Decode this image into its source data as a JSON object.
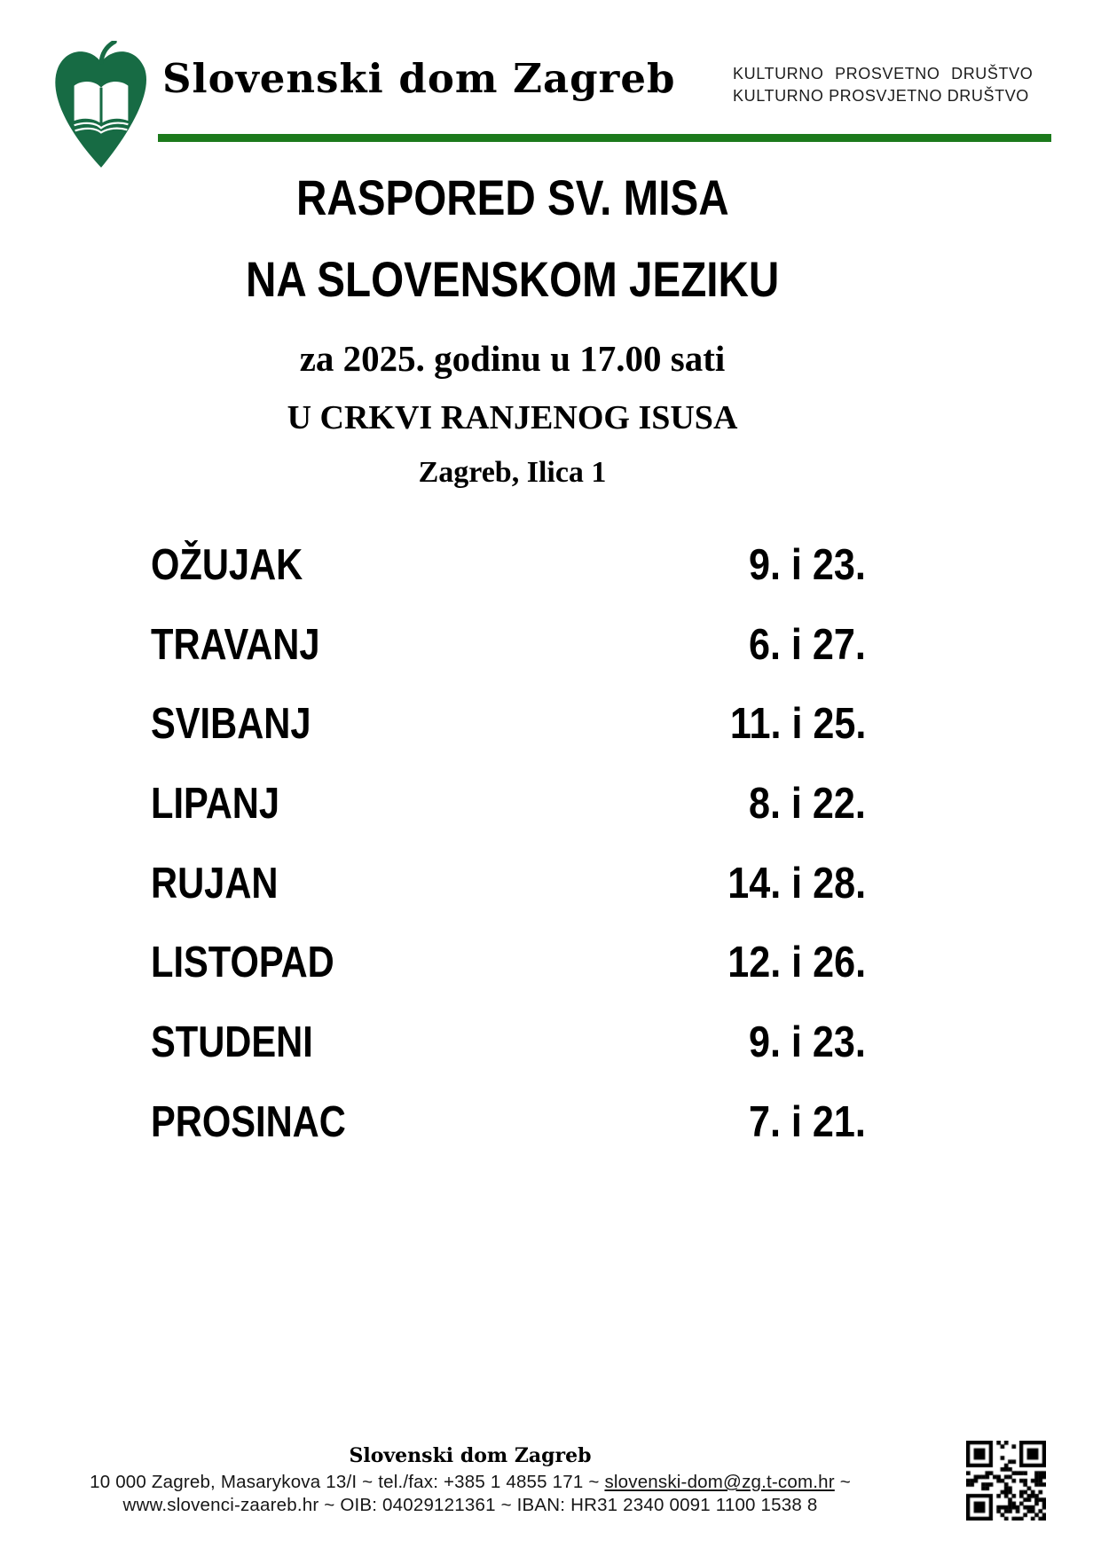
{
  "header": {
    "org_name": "Slovenski dom Zagreb",
    "society_line1": "KULTURNO PROSVETNO DRUŠTVO",
    "society_line2": "KULTURNO PROSVJETNO DRUŠTVO",
    "logo_icon": "linden-leaf-open-book-logo",
    "colors": {
      "logo_green": "#176b44",
      "rule_green": "#1c7a1c"
    }
  },
  "title": {
    "line1": "RASPORED SV. MISA",
    "line2": "NA SLOVENSKOM JEZIKU",
    "line3": "za 2025. godinu u 17.00 sati",
    "line4": "U CRKVI RANJENOG ISUSA",
    "line5": "Zagreb, Ilica 1"
  },
  "schedule": {
    "rows": [
      {
        "month": "OŽUJAK",
        "dates": "9. i 23."
      },
      {
        "month": "TRAVANJ",
        "dates": "6. i 27."
      },
      {
        "month": "SVIBANJ",
        "dates": "11. i 25."
      },
      {
        "month": "LIPANJ",
        "dates": "8. i 22."
      },
      {
        "month": "RUJAN",
        "dates": "14. i 28."
      },
      {
        "month": "LISTOPAD",
        "dates": "12. i 26."
      },
      {
        "month": "STUDENI",
        "dates": "9. i 23."
      },
      {
        "month": "PROSINAC",
        "dates": "7. i 21."
      }
    ]
  },
  "footer": {
    "org_name": "Slovenski dom Zagreb",
    "line1_prefix": "10 000 Zagreb, Masarykova 13/I ~ tel./fax: +385 1 4855 171 ~ ",
    "email": "slovenski-dom@zg.t-com.hr",
    "line1_suffix": " ~",
    "line2": "www.slovenci-zaareb.hr ~ OIB: 04029121361 ~ IBAN: HR31 2340 0091 1100 1538 8",
    "qr_icon": "qr-code"
  }
}
